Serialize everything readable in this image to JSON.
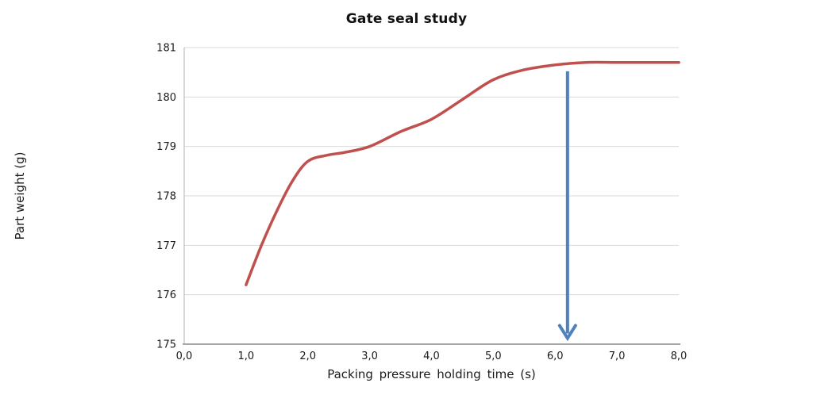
{
  "window": {
    "background": "#ffffff"
  },
  "chart_data": {
    "type": "line",
    "title": "Gate seal study",
    "xlabel": "Packing pressure holding time (s)",
    "ylabel": "Part weight (g)",
    "xlim": [
      0,
      8
    ],
    "ylim": [
      175,
      181
    ],
    "x_ticks": [
      0,
      1,
      2,
      3,
      4,
      5,
      6,
      7,
      8
    ],
    "x_tick_labels": [
      "0,0",
      "1,0",
      "2,0",
      "3,0",
      "4,0",
      "5,0",
      "6,0",
      "7,0",
      "8,0"
    ],
    "y_ticks": [
      175,
      176,
      177,
      178,
      179,
      180,
      181
    ],
    "y_tick_labels": [
      "175",
      "176",
      "177",
      "178",
      "179",
      "180",
      "181"
    ],
    "grid": "horizontal",
    "legend": "none",
    "series": [
      {
        "name": "Part weight",
        "color": "#c0504d",
        "line_width": 3.5,
        "x": [
          1.0,
          1.25,
          1.5,
          1.75,
          2.0,
          2.3,
          2.6,
          3.0,
          3.5,
          4.0,
          4.5,
          5.0,
          5.5,
          6.0,
          6.5,
          7.0,
          7.5,
          8.0
        ],
        "y": [
          176.2,
          177.0,
          177.7,
          178.3,
          178.7,
          178.82,
          178.88,
          179.0,
          179.3,
          179.55,
          179.95,
          180.35,
          180.55,
          180.65,
          180.7,
          180.7,
          180.7,
          180.7
        ]
      }
    ],
    "annotation_arrow": {
      "x": 6.2,
      "y_start": 180.52,
      "y_end": 175.12,
      "direction": "down",
      "color": "#4f81bd",
      "shaft_width": 4
    },
    "colors": {
      "gridline": "#d9d9d9",
      "y_axis_line": "#bfbfbf",
      "x_axis_line": "#a6a6a6",
      "text": "#1a1a1a"
    }
  }
}
